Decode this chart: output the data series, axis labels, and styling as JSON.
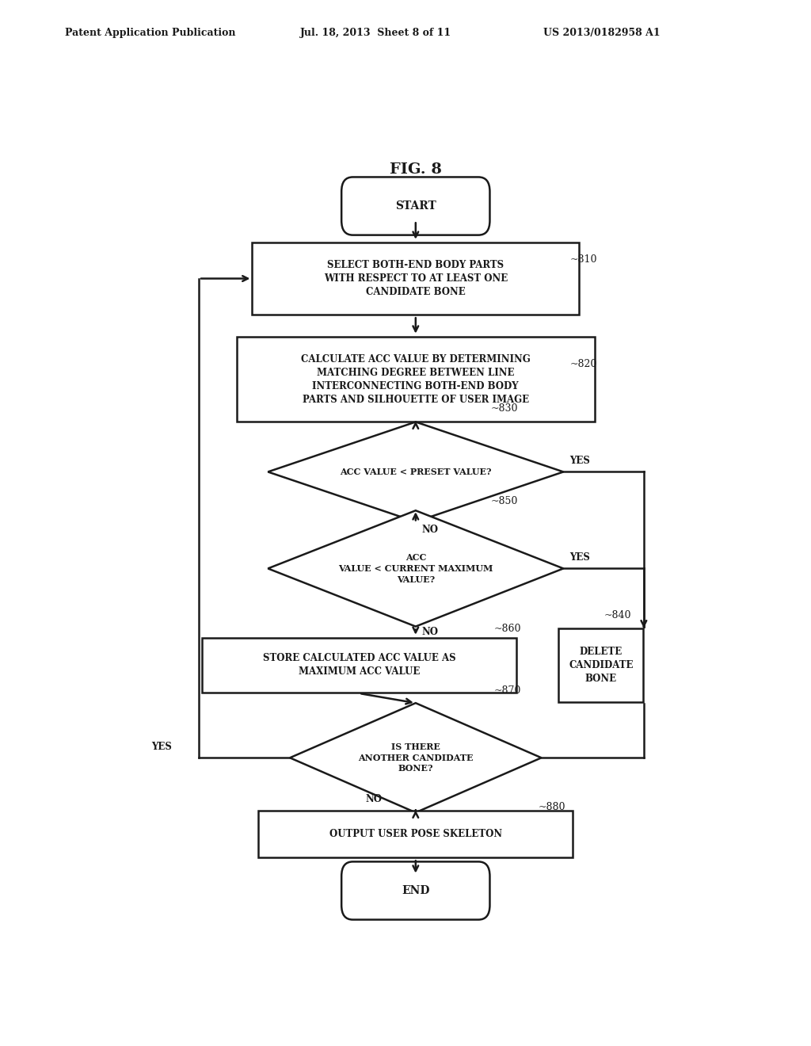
{
  "bg_color": "#ffffff",
  "text_color": "#1a1a1a",
  "header_left": "Patent Application Publication",
  "header_mid": "Jul. 18, 2013  Sheet 8 of 11",
  "header_right": "US 2013/0182958 A1",
  "fig_label": "FIG. 8",
  "start_text": "START",
  "end_text": "END",
  "s810_text": "SELECT BOTH-END BODY PARTS\nWITH RESPECT TO AT LEAST ONE\nCANDIDATE BONE",
  "s810_label": "810",
  "s820_text": "CALCULATE ACC VALUE BY DETERMINING\nMATCHING DEGREE BETWEEN LINE\nINTERCONNECTING BOTH-END BODY\nPARTS AND SILHOUETTE OF USER IMAGE",
  "s820_label": "820",
  "s830_text": "ACC VALUE < PRESET VALUE?",
  "s830_label": "830",
  "s850_text": "ACC\nVALUE < CURRENT MAXIMUM\nVALUE?",
  "s850_label": "850",
  "s860_text": "STORE CALCULATED ACC VALUE AS\nMAXIMUM ACC VALUE",
  "s860_label": "860",
  "s840_text": "DELETE\nCANDIDATE\nBONE",
  "s840_label": "840",
  "s870_text": "IS THERE\nANOTHER CANDIDATE\nBONE?",
  "s870_label": "870",
  "s880_text": "OUTPUT USER POSE SKELETON",
  "s880_label": "880"
}
